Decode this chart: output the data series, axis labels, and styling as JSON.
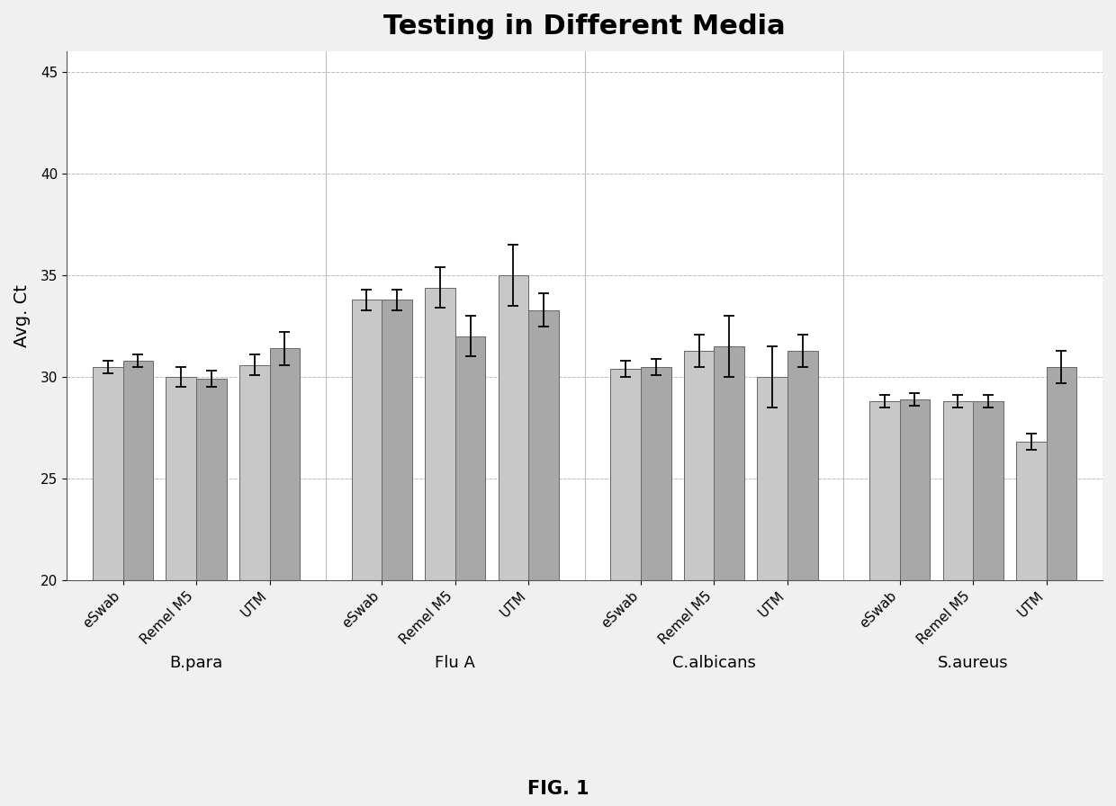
{
  "title": "Testing in Different Media",
  "ylabel": "Avg. Ct",
  "ylim": [
    20,
    46
  ],
  "yticks": [
    20,
    25,
    30,
    35,
    40,
    45
  ],
  "groups": [
    "B.para",
    "Flu A",
    "C.albicans",
    "S.aureus"
  ],
  "media": [
    "eSwab",
    "Remel M5",
    "UTM"
  ],
  "values": {
    "B.para": [
      30.5,
      30.8,
      30.0,
      29.9,
      30.6,
      31.4
    ],
    "Flu A": [
      33.8,
      33.8,
      34.4,
      32.0,
      35.0,
      33.3
    ],
    "C.albicans": [
      30.4,
      30.5,
      31.3,
      31.5,
      30.0,
      31.3
    ],
    "S.aureus": [
      28.8,
      28.9,
      28.8,
      28.8,
      26.8,
      30.5
    ]
  },
  "errors": {
    "B.para": [
      0.3,
      0.3,
      0.5,
      0.4,
      0.5,
      0.8
    ],
    "Flu A": [
      0.5,
      0.5,
      1.0,
      1.0,
      1.5,
      0.8
    ],
    "C.albicans": [
      0.4,
      0.4,
      0.8,
      1.5,
      1.5,
      0.8
    ],
    "S.aureus": [
      0.3,
      0.3,
      0.3,
      0.3,
      0.4,
      0.8
    ]
  },
  "bar_color_1": "#c8c8c8",
  "bar_color_2": "#a8a8a8",
  "bar_edge_color": "#666666",
  "grid_color": "#aaaaaa",
  "background_color": "#ffffff",
  "fig_background": "#f0f0f0",
  "title_fontsize": 22,
  "label_fontsize": 14,
  "tick_fontsize": 11,
  "group_label_fontsize": 13
}
